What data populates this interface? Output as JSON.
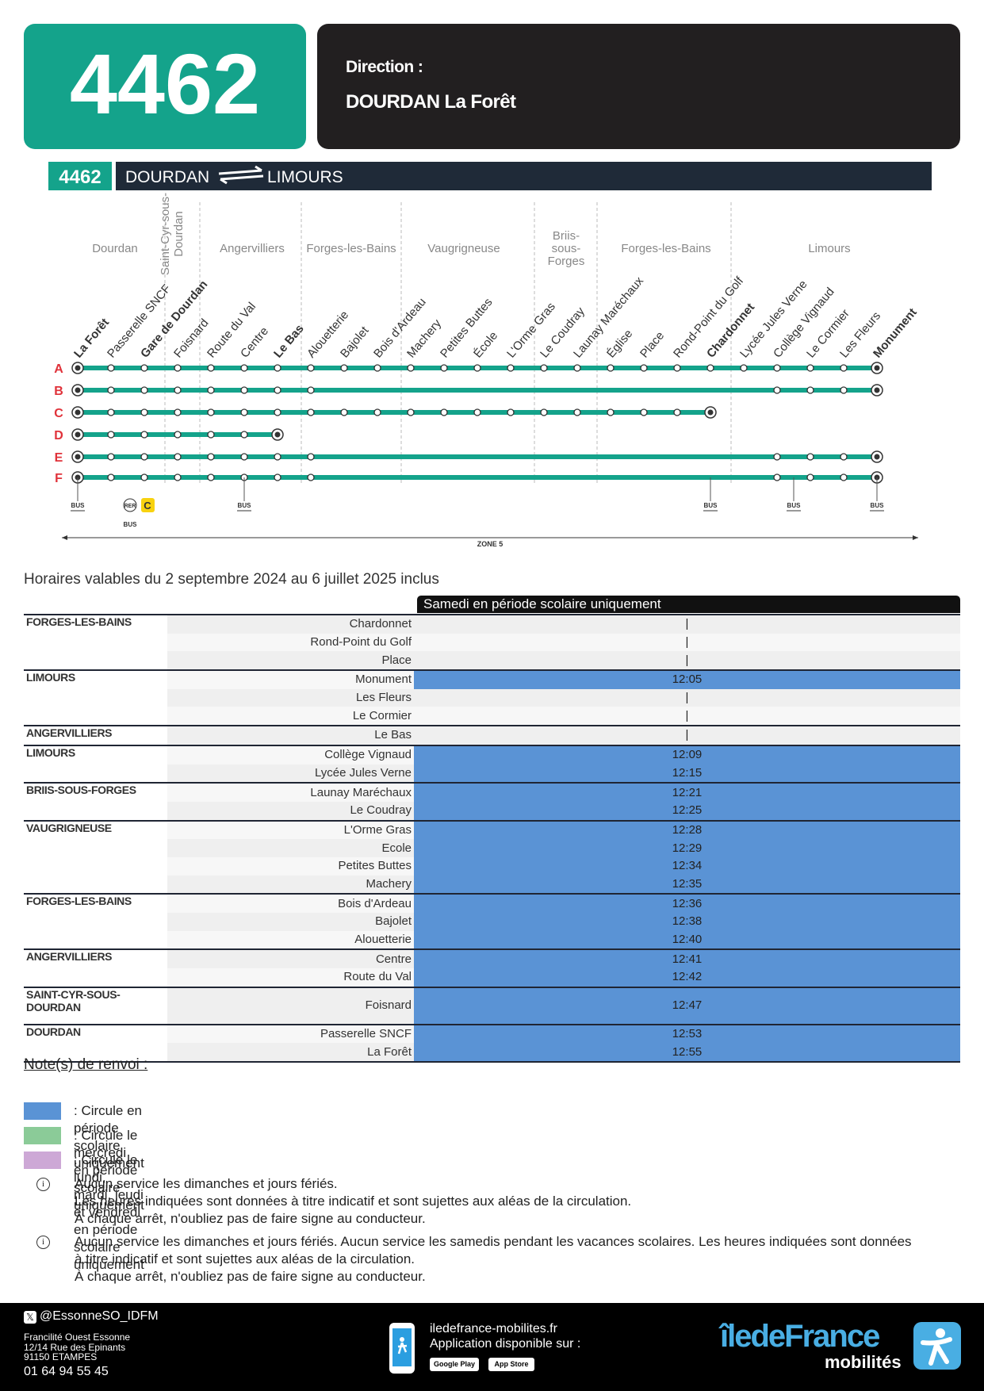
{
  "header": {
    "line": "4462",
    "direction_label": "Direction :",
    "direction": "DOURDAN La Forêt"
  },
  "route_banner": {
    "line": "4462",
    "from": "DOURDAN",
    "to": "LIMOURS"
  },
  "diagram": {
    "communes": [
      "Dourdan",
      "Saint-Cyr-sous-Dourdan",
      "Angervilliers",
      "Forges-les-Bains",
      "Vaugrigneuse",
      "Briis-sous-Forges",
      "Forges-les-Bains",
      "Limours"
    ],
    "stops": [
      {
        "name": "La Forêt",
        "bold": true
      },
      {
        "name": "Passerelle SNCF",
        "bold": false
      },
      {
        "name": "Gare de Dourdan",
        "bold": true
      },
      {
        "name": "Foisnard",
        "bold": false
      },
      {
        "name": "Route du Val",
        "bold": false
      },
      {
        "name": "Centre",
        "bold": false
      },
      {
        "name": "Le Bas",
        "bold": true
      },
      {
        "name": "Alouetterie",
        "bold": false
      },
      {
        "name": "Bajolet",
        "bold": false
      },
      {
        "name": "Bois d'Ardeau",
        "bold": false
      },
      {
        "name": "Machery",
        "bold": false
      },
      {
        "name": "Petites Buttes",
        "bold": false
      },
      {
        "name": "École",
        "bold": false
      },
      {
        "name": "L'Orme Gras",
        "bold": false
      },
      {
        "name": "Le Coudray",
        "bold": false
      },
      {
        "name": "Launay Maréchaux",
        "bold": false
      },
      {
        "name": "Église",
        "bold": false
      },
      {
        "name": "Place",
        "bold": false
      },
      {
        "name": "Rond-Point du Golf",
        "bold": false
      },
      {
        "name": "Chardonnet",
        "bold": true
      },
      {
        "name": "Lycée Jules Verne",
        "bold": false
      },
      {
        "name": "Collège Vignaud",
        "bold": false
      },
      {
        "name": "Le Cormier",
        "bold": false
      },
      {
        "name": "Les Fleurs",
        "bold": false
      },
      {
        "name": "Monument",
        "bold": true
      }
    ],
    "lines": [
      "A",
      "B",
      "C",
      "D",
      "E",
      "F"
    ],
    "bus_label": "BUS",
    "rer_label": "RER",
    "rer_line": "C",
    "zone": "ZONE 5"
  },
  "validity": "Horaires valables du 2 septembre 2024 au 6 juillet 2025 inclus",
  "table": {
    "column": "Samedi en période scolaire uniquement",
    "highlight_color": "#5a93d5",
    "groups": [
      {
        "commune": "FORGES-LES-BAINS",
        "rows": [
          {
            "stop": "Chardonnet",
            "time": "|",
            "highlight": false
          },
          {
            "stop": "Rond-Point du Golf",
            "time": "|",
            "highlight": false
          },
          {
            "stop": "Place",
            "time": "|",
            "highlight": false
          }
        ]
      },
      {
        "commune": "LIMOURS",
        "rows": [
          {
            "stop": "Monument",
            "time": "12:05",
            "highlight": true
          },
          {
            "stop": "Les Fleurs",
            "time": "|",
            "highlight": false
          },
          {
            "stop": "Le Cormier",
            "time": "|",
            "highlight": false
          }
        ]
      },
      {
        "commune": "ANGERVILLIERS",
        "rows": [
          {
            "stop": "Le Bas",
            "time": "|",
            "highlight": false
          }
        ]
      },
      {
        "commune": "LIMOURS",
        "rows": [
          {
            "stop": "Collège Vignaud",
            "time": "12:09",
            "highlight": true
          },
          {
            "stop": "Lycée Jules Verne",
            "time": "12:15",
            "highlight": true
          }
        ]
      },
      {
        "commune": "BRIIS-SOUS-FORGES",
        "rows": [
          {
            "stop": "Launay Maréchaux",
            "time": "12:21",
            "highlight": true
          },
          {
            "stop": "Le Coudray",
            "time": "12:25",
            "highlight": true
          }
        ]
      },
      {
        "commune": "VAUGRIGNEUSE",
        "rows": [
          {
            "stop": "L'Orme Gras",
            "time": "12:28",
            "highlight": true
          },
          {
            "stop": "Ecole",
            "time": "12:29",
            "highlight": true
          },
          {
            "stop": "Petites Buttes",
            "time": "12:34",
            "highlight": true
          },
          {
            "stop": "Machery",
            "time": "12:35",
            "highlight": true
          }
        ]
      },
      {
        "commune": "FORGES-LES-BAINS",
        "rows": [
          {
            "stop": "Bois d'Ardeau",
            "time": "12:36",
            "highlight": true
          },
          {
            "stop": "Bajolet",
            "time": "12:38",
            "highlight": true
          },
          {
            "stop": "Alouetterie",
            "time": "12:40",
            "highlight": true
          }
        ]
      },
      {
        "commune": "ANGERVILLIERS",
        "rows": [
          {
            "stop": "Centre",
            "time": "12:41",
            "highlight": true
          },
          {
            "stop": "Route du Val",
            "time": "12:42",
            "highlight": true
          }
        ]
      },
      {
        "commune": "SAINT-CYR-SOUS-DOURDAN",
        "rows": [
          {
            "stop": "Foisnard",
            "time": "12:47",
            "highlight": true
          }
        ]
      },
      {
        "commune": "DOURDAN",
        "rows": [
          {
            "stop": "Passerelle SNCF",
            "time": "12:53",
            "highlight": true
          },
          {
            "stop": "La Forêt",
            "time": "12:55",
            "highlight": true
          }
        ]
      }
    ]
  },
  "notes": {
    "title": "Note(s) de renvoi :",
    "legend": [
      {
        "color": "#5a93d5",
        "text": ": Circule en période scolaire uniquement"
      },
      {
        "color": "#8bcb98",
        "text": ": Circule le mercredi en période scolaire uniquement"
      },
      {
        "color": "#cda8d6",
        "text": ": Circule le lundi, mardi, jeudi et vendredi en période scolaire uniquement"
      }
    ],
    "info": [
      [
        "Aucun service les dimanches et jours fériés.",
        "Les heures indiquées sont données à titre indicatif et sont sujettes aux aléas de la circulation.",
        "À chaque arrêt, n'oubliez pas de faire signe au conducteur."
      ],
      [
        "Aucun service les dimanches et jours fériés. Aucun service les samedis pendant les vacances scolaires. Les heures indiquées sont données",
        "à titre indicatif et sont sujettes aux aléas de la circulation.",
        "À chaque arrêt, n'oubliez pas de faire signe au conducteur."
      ]
    ]
  },
  "footer": {
    "social": "@EssonneSO_IDFM",
    "address": [
      "Francilité Ouest Essonne",
      "12/14 Rue des Epinants",
      "91150 ETAMPES"
    ],
    "phone": "01 64 94 55 45",
    "website": "iledefrance-mobilites.fr",
    "app": "Application disponible sur :",
    "stores": [
      "Google Play",
      "App Store"
    ],
    "brand": "îledeFrance",
    "brand_sub": "mobilités"
  }
}
